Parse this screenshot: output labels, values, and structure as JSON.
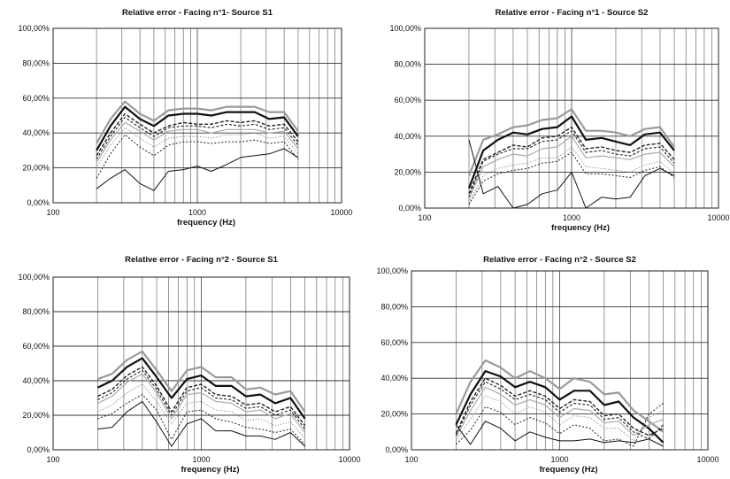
{
  "chart_data": [
    {
      "type": "line",
      "title": "Relative error - Facing n°1- Source S1",
      "xlabel": "frequency (Hz)",
      "ylabel": "",
      "x_scale": "log",
      "xlim": [
        100,
        10000
      ],
      "ylim": [
        0,
        100
      ],
      "x_ticks": [
        "100",
        "1000",
        "10000"
      ],
      "y_ticks": [
        "0,00%",
        "20,00%",
        "40,00%",
        "60,00%",
        "80,00%",
        "100,00%"
      ],
      "x": [
        200,
        250,
        315,
        400,
        500,
        630,
        800,
        1000,
        1250,
        1600,
        2000,
        2500,
        3150,
        4000,
        5000
      ],
      "series": [
        {
          "values": [
            34,
            48,
            58,
            51,
            47,
            53,
            54,
            54,
            53,
            55,
            55,
            55,
            52,
            52,
            41
          ],
          "color": "#9a9a9a",
          "width": 2.2
        },
        {
          "values": [
            30,
            44,
            55,
            48,
            44,
            50,
            51,
            51,
            50,
            52,
            52,
            52,
            48,
            49,
            38
          ],
          "color": "#111111",
          "width": 2.2
        },
        {
          "values": [
            27,
            40,
            51,
            45,
            40,
            44,
            46,
            45,
            45,
            47,
            46,
            47,
            44,
            45,
            35
          ],
          "color": "#222222",
          "width": 1.4,
          "dash": "4,2"
        },
        {
          "values": [
            25,
            38,
            49,
            43,
            38,
            43,
            44,
            44,
            43,
            45,
            44,
            45,
            42,
            43,
            33
          ],
          "color": "#333333",
          "width": 1.2,
          "dash": "3,2"
        },
        {
          "values": [
            23,
            36,
            46,
            41,
            36,
            41,
            42,
            42,
            40,
            42,
            42,
            42,
            40,
            41,
            31
          ],
          "color": "#aaaaaa",
          "width": 1.2
        },
        {
          "values": [
            20,
            33,
            43,
            37,
            32,
            37,
            38,
            38,
            37,
            39,
            39,
            40,
            37,
            38,
            28
          ],
          "color": "#777777",
          "width": 1,
          "dash": "1,2"
        },
        {
          "values": [
            14,
            28,
            39,
            32,
            27,
            33,
            35,
            35,
            34,
            35,
            35,
            36,
            34,
            35,
            25
          ],
          "color": "#222222",
          "width": 1,
          "dash": "2,2"
        },
        {
          "values": [
            8,
            14,
            19,
            11,
            7,
            18,
            19,
            21,
            18,
            22,
            26,
            27,
            28,
            31,
            26
          ],
          "color": "#111111",
          "width": 1
        }
      ]
    },
    {
      "type": "line",
      "title": "Relative error - Facing n°1 - Source S2",
      "xlabel": "frequency (Hz)",
      "ylabel": "",
      "x_scale": "log",
      "xlim": [
        100,
        10000
      ],
      "ylim": [
        0,
        100
      ],
      "x_ticks": [
        "100",
        "1000",
        "10000"
      ],
      "y_ticks": [
        "0,00%",
        "20,00%",
        "40,00%",
        "60,00%",
        "80,00%",
        "100,00%"
      ],
      "x": [
        200,
        250,
        315,
        400,
        500,
        630,
        800,
        1000,
        1250,
        1600,
        2000,
        2500,
        3150,
        4000,
        5000
      ],
      "series": [
        {
          "values": [
            18,
            38,
            41,
            45,
            46,
            49,
            50,
            55,
            43,
            43,
            42,
            40,
            44,
            45,
            34
          ],
          "color": "#9a9a9a",
          "width": 2.2
        },
        {
          "values": [
            11,
            32,
            38,
            42,
            41,
            44,
            45,
            51,
            38,
            39,
            37,
            35,
            41,
            42,
            32
          ],
          "color": "#111111",
          "width": 2.2
        },
        {
          "values": [
            8,
            27,
            31,
            35,
            34,
            39,
            40,
            45,
            33,
            34,
            32,
            31,
            35,
            36,
            27
          ],
          "color": "#222222",
          "width": 1.4,
          "dash": "4,2"
        },
        {
          "values": [
            6,
            26,
            30,
            33,
            33,
            37,
            38,
            43,
            31,
            32,
            30,
            29,
            33,
            34,
            25
          ],
          "color": "#333333",
          "width": 1.2,
          "dash": "3,2"
        },
        {
          "values": [
            5,
            23,
            27,
            30,
            29,
            33,
            34,
            40,
            28,
            29,
            28,
            27,
            30,
            31,
            23
          ],
          "color": "#aaaaaa",
          "width": 1.2
        },
        {
          "values": [
            3,
            18,
            22,
            24,
            25,
            28,
            28,
            34,
            23,
            22,
            21,
            20,
            24,
            26,
            19
          ],
          "color": "#777777",
          "width": 1,
          "dash": "1,2"
        },
        {
          "values": [
            2,
            15,
            19,
            21,
            22,
            25,
            26,
            31,
            19,
            19,
            18,
            17,
            21,
            23,
            17
          ],
          "color": "#222222",
          "width": 1,
          "dash": "2,2"
        },
        {
          "values": [
            38,
            8,
            12,
            0,
            2,
            8,
            10,
            20,
            0,
            6,
            5,
            6,
            18,
            22,
            18
          ],
          "color": "#111111",
          "width": 1
        }
      ]
    },
    {
      "type": "line",
      "title": "Relative error - Facing n°2 - Source S1",
      "xlabel": "frequency (Hz)",
      "ylabel": "",
      "x_scale": "log",
      "xlim": [
        100,
        10000
      ],
      "ylim": [
        0,
        100
      ],
      "x_ticks": [
        "100",
        "1000",
        "10000"
      ],
      "y_ticks": [
        "0,00%",
        "20,00%",
        "40,00%",
        "60,00%",
        "80,00%",
        "100,00%"
      ],
      "x": [
        200,
        250,
        315,
        400,
        500,
        630,
        800,
        1000,
        1250,
        1600,
        2000,
        2500,
        3150,
        4000,
        5000
      ],
      "series": [
        {
          "values": [
            41,
            44,
            52,
            57,
            46,
            34,
            46,
            48,
            42,
            42,
            35,
            36,
            32,
            34,
            22
          ],
          "color": "#9a9a9a",
          "width": 2.2
        },
        {
          "values": [
            36,
            40,
            48,
            53,
            42,
            30,
            41,
            43,
            37,
            37,
            31,
            32,
            27,
            30,
            18
          ],
          "color": "#111111",
          "width": 2.2
        },
        {
          "values": [
            31,
            35,
            43,
            48,
            37,
            22,
            36,
            38,
            32,
            31,
            26,
            27,
            22,
            25,
            14
          ],
          "color": "#222222",
          "width": 1.4,
          "dash": "4,2"
        },
        {
          "values": [
            29,
            33,
            41,
            46,
            35,
            20,
            34,
            36,
            30,
            29,
            24,
            25,
            20,
            23,
            12
          ],
          "color": "#333333",
          "width": 1.2,
          "dash": "3,2"
        },
        {
          "values": [
            27,
            31,
            39,
            44,
            33,
            18,
            32,
            33,
            28,
            27,
            22,
            23,
            18,
            21,
            10
          ],
          "color": "#aaaaaa",
          "width": 1.2
        },
        {
          "values": [
            22,
            26,
            33,
            38,
            28,
            15,
            27,
            28,
            23,
            22,
            17,
            18,
            14,
            16,
            7
          ],
          "color": "#777777",
          "width": 1,
          "dash": "1,2"
        },
        {
          "values": [
            18,
            21,
            27,
            32,
            23,
            6,
            22,
            23,
            18,
            16,
            13,
            12,
            10,
            12,
            3
          ],
          "color": "#222222",
          "width": 1,
          "dash": "2,2"
        },
        {
          "values": [
            12,
            13,
            22,
            28,
            16,
            2,
            15,
            18,
            11,
            11,
            8,
            8,
            6,
            10,
            2
          ],
          "color": "#111111",
          "width": 1
        }
      ]
    },
    {
      "type": "line",
      "title": "Relative error - Facing n°2 - Source S2",
      "xlabel": "frequency (Hz)",
      "ylabel": "",
      "x_scale": "log",
      "xlim": [
        100,
        10000
      ],
      "ylim": [
        0,
        100
      ],
      "x_ticks": [
        "100",
        "1000",
        "10000"
      ],
      "y_ticks": [
        "0,00%",
        "20,00%",
        "40,00%",
        "60,00%",
        "80,00%",
        "100,00%"
      ],
      "x": [
        200,
        250,
        315,
        400,
        500,
        630,
        800,
        1000,
        1250,
        1600,
        2000,
        2500,
        3150,
        4000,
        5000
      ],
      "series": [
        {
          "values": [
            20,
            38,
            50,
            46,
            40,
            44,
            40,
            34,
            40,
            38,
            31,
            32,
            22,
            16,
            10
          ],
          "color": "#9a9a9a",
          "width": 2.2
        },
        {
          "values": [
            14,
            31,
            44,
            41,
            35,
            38,
            35,
            28,
            33,
            33,
            25,
            27,
            18,
            12,
            4
          ],
          "color": "#111111",
          "width": 2.2
        },
        {
          "values": [
            9,
            27,
            40,
            36,
            30,
            33,
            30,
            23,
            28,
            27,
            19,
            20,
            12,
            8,
            12
          ],
          "color": "#222222",
          "width": 1.4,
          "dash": "4,2"
        },
        {
          "values": [
            8,
            25,
            38,
            34,
            28,
            31,
            28,
            21,
            26,
            25,
            17,
            18,
            10,
            6,
            14
          ],
          "color": "#333333",
          "width": 1.2,
          "dash": "3,2"
        },
        {
          "values": [
            7,
            22,
            35,
            31,
            25,
            28,
            25,
            18,
            23,
            22,
            15,
            16,
            8,
            14,
            17
          ],
          "color": "#aaaaaa",
          "width": 1.2
        },
        {
          "values": [
            5,
            17,
            30,
            27,
            20,
            24,
            21,
            14,
            19,
            18,
            12,
            12,
            5,
            18,
            22
          ],
          "color": "#777777",
          "width": 1,
          "dash": "1,2"
        },
        {
          "values": [
            3,
            11,
            24,
            21,
            14,
            18,
            15,
            9,
            14,
            12,
            5,
            6,
            2,
            20,
            26
          ],
          "color": "#222222",
          "width": 1,
          "dash": "2,2"
        },
        {
          "values": [
            14,
            3,
            16,
            12,
            5,
            10,
            7,
            5,
            5,
            6,
            4,
            5,
            4,
            6,
            2
          ],
          "color": "#111111",
          "width": 1
        }
      ]
    }
  ]
}
